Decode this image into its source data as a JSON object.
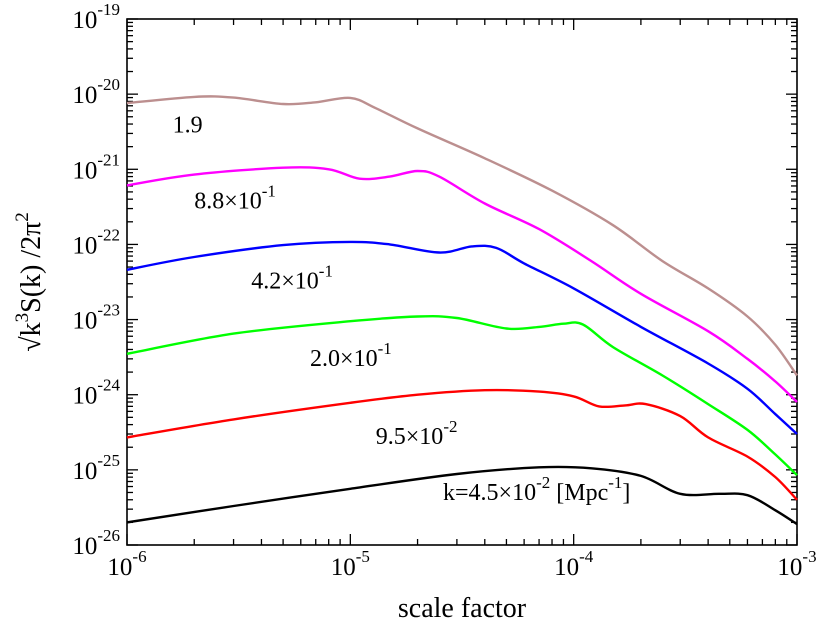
{
  "chart_data": {
    "type": "line",
    "title": "",
    "xlabel": "scale factor",
    "ylabel": {
      "sqrt": "√",
      "k": "k",
      "k_exp": "3",
      "rest": "S(k) /2π",
      "pi_exp": "2"
    },
    "xscale": "log",
    "yscale": "log",
    "xlim": [
      1e-06,
      0.001
    ],
    "ylim": [
      1e-26,
      1e-19
    ],
    "x_ticks": [
      {
        "value": 1e-06,
        "base": "10",
        "exp": "-6"
      },
      {
        "value": 1e-05,
        "base": "10",
        "exp": "-5"
      },
      {
        "value": 0.0001,
        "base": "10",
        "exp": "-4"
      },
      {
        "value": 0.001,
        "base": "10",
        "exp": "-3"
      }
    ],
    "y_ticks": [
      {
        "value": 1e-26,
        "base": "10",
        "exp": "-26"
      },
      {
        "value": 1e-25,
        "base": "10",
        "exp": "-25"
      },
      {
        "value": 1e-24,
        "base": "10",
        "exp": "-24"
      },
      {
        "value": 1e-23,
        "base": "10",
        "exp": "-23"
      },
      {
        "value": 1e-22,
        "base": "10",
        "exp": "-22"
      },
      {
        "value": 1e-21,
        "base": "10",
        "exp": "-21"
      },
      {
        "value": 1e-20,
        "base": "10",
        "exp": "-20"
      },
      {
        "value": 1e-19,
        "base": "10",
        "exp": "-19"
      }
    ],
    "series": [
      {
        "name": "k=4.5e-2",
        "label": {
          "mant": "k=4.5×10",
          "exp": "-2",
          "suffix": " [Mpc",
          "suffix_exp": "-1",
          "tail": "]"
        },
        "label_at": [
          2.6e-05,
          4e-26
        ],
        "color": "#000000",
        "points": [
          [
            1e-06,
            2e-26
          ],
          [
            3e-06,
            3.3e-26
          ],
          [
            1e-05,
            5.6e-26
          ],
          [
            3e-05,
            8.8e-26
          ],
          [
            7e-05,
            1.08e-25
          ],
          [
            0.00012,
            1.05e-25
          ],
          [
            0.0002,
            8.3e-26
          ],
          [
            0.0003,
            4.8e-26
          ],
          [
            0.00045,
            4.8e-26
          ],
          [
            0.0006,
            4.6e-26
          ],
          [
            0.0008,
            2.9e-26
          ],
          [
            0.001,
            1.9e-26
          ]
        ]
      },
      {
        "name": "k=9.5e-2",
        "label": {
          "mant": "9.5×10",
          "exp": "-2"
        },
        "label_at": [
          1.3e-05,
          2.2e-25
        ],
        "color": "#ff0000",
        "points": [
          [
            1e-06,
            2.7e-25
          ],
          [
            3e-06,
            4.7e-25
          ],
          [
            1e-05,
            7.8e-25
          ],
          [
            2e-05,
            1e-24
          ],
          [
            4e-05,
            1.15e-24
          ],
          [
            7e-05,
            1.1e-24
          ],
          [
            0.0001,
            9.5e-25
          ],
          [
            0.00013,
            7e-25
          ],
          [
            0.00017,
            7.2e-25
          ],
          [
            0.00021,
            7.5e-25
          ],
          [
            0.0003,
            5.2e-25
          ],
          [
            0.0004,
            2.7e-25
          ],
          [
            0.0006,
            1.5e-25
          ],
          [
            0.0008,
            8e-26
          ],
          [
            0.001,
            4e-26
          ]
        ]
      },
      {
        "name": "k=2.0e-1",
        "label": {
          "mant": "2.0×10",
          "exp": "-1"
        },
        "label_at": [
          6.6e-06,
          2.4e-24
        ],
        "color": "#00ff00",
        "points": [
          [
            1e-06,
            3.5e-24
          ],
          [
            3e-06,
            6.5e-24
          ],
          [
            1e-05,
            9.5e-24
          ],
          [
            2e-05,
            1.1e-23
          ],
          [
            3e-05,
            1.05e-23
          ],
          [
            5e-05,
            7.6e-24
          ],
          [
            7e-05,
            8e-24
          ],
          [
            9e-05,
            8.8e-24
          ],
          [
            0.00011,
            8.6e-24
          ],
          [
            0.00015,
            4.3e-24
          ],
          [
            0.00025,
            1.8e-24
          ],
          [
            0.0004,
            7.5e-25
          ],
          [
            0.0006,
            3.4e-25
          ],
          [
            0.0008,
            1.6e-25
          ],
          [
            0.001,
            8.5e-26
          ]
        ]
      },
      {
        "name": "k=4.2e-1",
        "label": {
          "mant": "4.2×10",
          "exp": "-1"
        },
        "label_at": [
          3.6e-06,
          2.6e-23
        ],
        "color": "#0000ff",
        "points": [
          [
            1e-06,
            4.6e-23
          ],
          [
            2e-06,
            6.8e-23
          ],
          [
            5e-06,
            9.8e-23
          ],
          [
            1e-05,
            1.08e-22
          ],
          [
            1.5e-05,
            1e-22
          ],
          [
            2.5e-05,
            7.8e-23
          ],
          [
            3.5e-05,
            9.4e-23
          ],
          [
            4.5e-05,
            9e-23
          ],
          [
            6e-05,
            5.6e-23
          ],
          [
            0.0001,
            2.6e-23
          ],
          [
            0.0002,
            8e-24
          ],
          [
            0.0004,
            2.6e-24
          ],
          [
            0.0006,
            1.2e-24
          ],
          [
            0.0008,
            5.5e-25
          ],
          [
            0.001,
            3e-25
          ]
        ]
      },
      {
        "name": "k=8.8e-1",
        "label": {
          "mant": "8.8×10",
          "exp": "-1"
        },
        "label_at": [
          2e-06,
          3e-22
        ],
        "color": "#ff00ff",
        "points": [
          [
            1e-06,
            6.1e-22
          ],
          [
            2e-06,
            8.5e-22
          ],
          [
            5e-06,
            1.05e-21
          ],
          [
            8e-06,
            1e-21
          ],
          [
            1.1e-05,
            7.5e-22
          ],
          [
            1.5e-05,
            8e-22
          ],
          [
            2e-05,
            9.5e-22
          ],
          [
            2.5e-05,
            8e-22
          ],
          [
            4e-05,
            3.5e-22
          ],
          [
            7e-05,
            1.6e-22
          ],
          [
            0.00012,
            6e-23
          ],
          [
            0.0002,
            2.2e-23
          ],
          [
            0.0004,
            7e-24
          ],
          [
            0.0006,
            3e-24
          ],
          [
            0.0008,
            1.5e-24
          ],
          [
            0.001,
            8e-25
          ]
        ]
      },
      {
        "name": "k=1.9",
        "label": {
          "mant": "1.9",
          "exp": ""
        },
        "label_at": [
          1.6e-06,
          3.1e-21
        ],
        "color": "#bc8f8f",
        "points": [
          [
            1e-06,
            7.6e-21
          ],
          [
            2e-06,
            9.2e-21
          ],
          [
            3e-06,
            9e-21
          ],
          [
            5e-06,
            7.4e-21
          ],
          [
            7e-06,
            7.8e-21
          ],
          [
            1e-05,
            8.9e-21
          ],
          [
            1.3e-05,
            6.5e-21
          ],
          [
            2e-05,
            3.5e-21
          ],
          [
            4e-05,
            1.4e-21
          ],
          [
            8e-05,
            5.2e-22
          ],
          [
            0.00015,
            1.8e-22
          ],
          [
            0.00025,
            6e-23
          ],
          [
            0.0004,
            2.6e-23
          ],
          [
            0.0006,
            1.1e-23
          ],
          [
            0.0008,
            4.6e-24
          ],
          [
            0.001,
            1.8e-24
          ]
        ]
      }
    ]
  }
}
